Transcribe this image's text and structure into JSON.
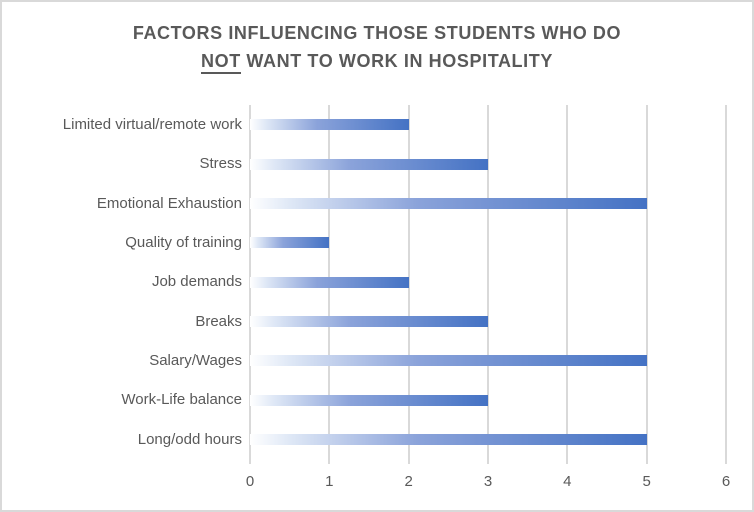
{
  "title": {
    "line1": "FACTORS INFLUENCING THOSE STUDENTS WHO DO",
    "line2_underlined": "NOT",
    "line2_rest": " WANT TO WORK IN HOSPITALITY"
  },
  "colors": {
    "bar_gradient_start": "#ffffff",
    "bar_gradient_light": "#dfe8f6",
    "bar_gradient_mid": "#8ba3da",
    "bar_gradient_end": "#4472c4",
    "gridline": "#d9d9d9",
    "text": "#595959",
    "border": "#d9d9d9"
  },
  "chart_data": {
    "type": "bar",
    "orientation": "horizontal",
    "title": "FACTORS INFLUENCING THOSE STUDENTS WHO DO NOT WANT TO WORK IN HOSPITALITY",
    "categories": [
      "Limited virtual/remote work",
      "Stress",
      "Emotional Exhaustion",
      "Quality of training",
      "Job demands",
      "Breaks",
      "Salary/Wages",
      "Work-Life balance",
      "Long/odd hours"
    ],
    "values": [
      2,
      3,
      5,
      1,
      2,
      3,
      5,
      3,
      5
    ],
    "xlabel": "",
    "ylabel": "",
    "xlim": [
      0,
      6
    ],
    "xticks": [
      0,
      1,
      2,
      3,
      4,
      5,
      6
    ],
    "grid": "vertical-on",
    "legend": "none",
    "bar_style": "gradient white-to-blue along each bar"
  }
}
